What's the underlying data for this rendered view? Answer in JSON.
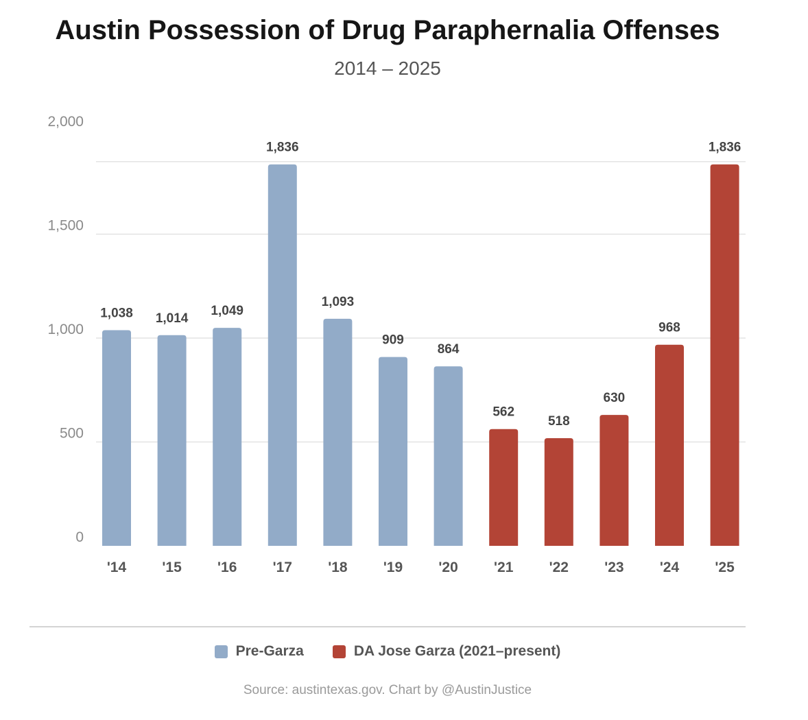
{
  "chart_data": {
    "type": "bar",
    "title": "Austin Possession of Drug Paraphernalia Offenses",
    "subtitle": "2014 – 2025",
    "categories": [
      "'14",
      "'15",
      "'16",
      "'17",
      "'18",
      "'19",
      "'20",
      "'21",
      "'22",
      "'23",
      "'24",
      "'25"
    ],
    "values": [
      1038,
      1014,
      1049,
      1836,
      1093,
      909,
      864,
      562,
      518,
      630,
      968,
      1836
    ],
    "value_labels": [
      "1,038",
      "1,014",
      "1,049",
      "1,836",
      "1,093",
      "909",
      "864",
      "562",
      "518",
      "630",
      "968",
      "1,836"
    ],
    "bar_groups": [
      0,
      0,
      0,
      0,
      0,
      0,
      0,
      1,
      1,
      1,
      1,
      1
    ],
    "series": [
      {
        "name": "Pre-Garza",
        "color": "#92abc8"
      },
      {
        "name": "DA Jose Garza (2021–present)",
        "color": "#b34436"
      }
    ],
    "yticks": [
      0,
      500,
      1000,
      1500,
      2000
    ],
    "ytick_labels": [
      "0",
      "500",
      "1,000",
      "1,500",
      "2,000"
    ],
    "ylim": [
      0,
      2000
    ],
    "xlabel": "",
    "ylabel": "",
    "grid": true,
    "legend_position": "bottom-center"
  },
  "source_note": "Source: austintexas.gov. Chart by @AustinJustice"
}
